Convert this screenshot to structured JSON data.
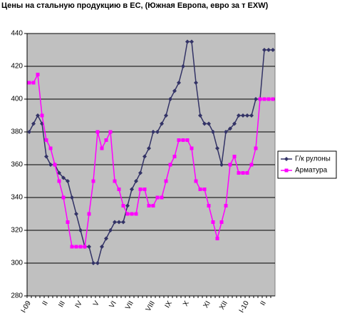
{
  "chart_data": {
    "type": "line",
    "title": "Цены на стальную продукцию в ЕС, (Южная Европа, евро за т EXW)",
    "categories": [
      "I-09",
      null,
      null,
      null,
      "II",
      null,
      null,
      null,
      "III",
      null,
      null,
      null,
      "IV",
      null,
      null,
      null,
      "V",
      null,
      null,
      null,
      "VI",
      null,
      null,
      null,
      "VII",
      null,
      null,
      null,
      null,
      "VIII",
      null,
      null,
      null,
      "IX",
      null,
      null,
      null,
      "X",
      null,
      null,
      null,
      null,
      "XI",
      null,
      null,
      null,
      "XII",
      null,
      null,
      null,
      null,
      "I-10",
      null,
      null,
      null,
      "II",
      null,
      null
    ],
    "series": [
      {
        "name": "Г/к рулоны",
        "color": "#333366",
        "marker": "diamond",
        "values": [
          380,
          385,
          390,
          385,
          365,
          360,
          360,
          355,
          352,
          350,
          340,
          330,
          320,
          310,
          310,
          300,
          300,
          310,
          315,
          320,
          325,
          325,
          325,
          335,
          345,
          350,
          355,
          365,
          370,
          380,
          380,
          385,
          390,
          400,
          405,
          410,
          420,
          435,
          435,
          410,
          390,
          385,
          385,
          380,
          370,
          360,
          380,
          382,
          385,
          390,
          390,
          390,
          390,
          400,
          400,
          430,
          430,
          430
        ]
      },
      {
        "name": "Арматура",
        "color": "#ff00ff",
        "marker": "square",
        "values": [
          410,
          410,
          415,
          390,
          375,
          370,
          360,
          350,
          340,
          325,
          310,
          310,
          310,
          310,
          330,
          350,
          380,
          370,
          375,
          380,
          350,
          345,
          335,
          330,
          330,
          330,
          345,
          345,
          335,
          335,
          340,
          340,
          350,
          360,
          365,
          375,
          375,
          375,
          370,
          350,
          345,
          345,
          335,
          325,
          315,
          325,
          335,
          360,
          365,
          355,
          355,
          355,
          360,
          370,
          400,
          400,
          400,
          400
        ]
      }
    ],
    "ylim": [
      280,
      440
    ],
    "yticks": [
      280,
      300,
      320,
      340,
      360,
      380,
      400,
      420,
      440
    ],
    "grid": true,
    "legend": "right"
  }
}
